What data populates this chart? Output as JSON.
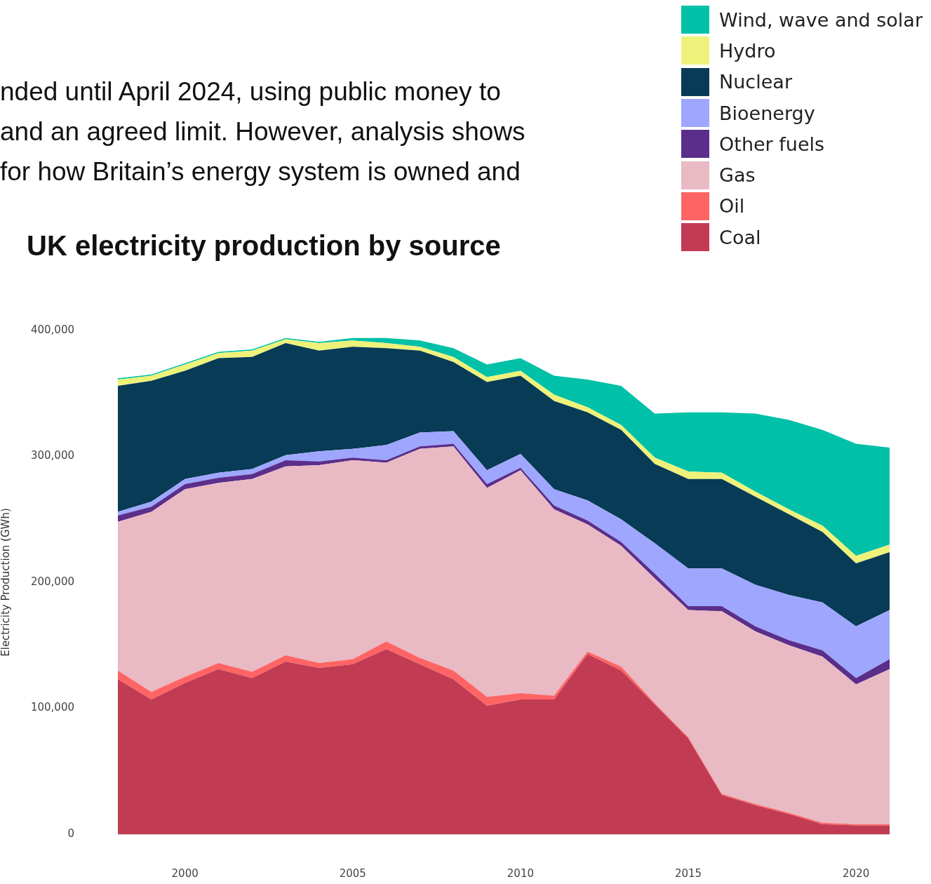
{
  "chart_data": {
    "type": "area",
    "title": "UK electricity production by source",
    "ylabel": "Electricity Production (GWh)",
    "annotations": [
      "nded until April 2024, using public money to",
      "and an agreed limit. However, analysis shows",
      "for how Britain’s energy system is owned and"
    ],
    "x": [
      1998,
      1999,
      2000,
      2001,
      2002,
      2003,
      2004,
      2005,
      2006,
      2007,
      2008,
      2009,
      2010,
      2011,
      2012,
      2013,
      2014,
      2015,
      2016,
      2017,
      2018,
      2019,
      2020,
      2021
    ],
    "stacked": true,
    "series": [
      {
        "name": "Coal",
        "color": "#c13b53",
        "values": [
          123000,
          107000,
          120000,
          131000,
          124000,
          137000,
          132000,
          135000,
          147000,
          135000,
          123000,
          102000,
          107000,
          107000,
          143000,
          130000,
          103000,
          76000,
          31000,
          23000,
          16000,
          8000,
          7000,
          7000
        ]
      },
      {
        "name": "Oil",
        "color": "#fe6464",
        "values": [
          7000,
          6000,
          5000,
          5000,
          5000,
          5000,
          4000,
          4000,
          6000,
          5000,
          7000,
          7000,
          5000,
          3000,
          2000,
          3000,
          1000,
          1000,
          1000,
          1000,
          1000,
          1000,
          1000,
          1000
        ]
      },
      {
        "name": "Gas",
        "color": "#e9b9c4",
        "values": [
          118000,
          143000,
          149000,
          143000,
          153000,
          150000,
          157000,
          158000,
          142000,
          166000,
          178000,
          166000,
          177000,
          148000,
          101000,
          96000,
          99000,
          101000,
          145000,
          137000,
          133000,
          132000,
          111000,
          123000
        ]
      },
      {
        "name": "Other fuels",
        "color": "#5a2e8a",
        "values": [
          5000,
          4000,
          4000,
          4000,
          4000,
          5000,
          3000,
          2000,
          2000,
          2000,
          2000,
          3000,
          2000,
          3000,
          3000,
          3000,
          4000,
          3000,
          4000,
          4000,
          4000,
          5000,
          5000,
          8000
        ]
      },
      {
        "name": "Bioenergy",
        "color": "#9ea6fe",
        "values": [
          3000,
          4000,
          4000,
          4000,
          4000,
          4000,
          8000,
          7000,
          12000,
          11000,
          10000,
          11000,
          11000,
          13000,
          16000,
          18000,
          24000,
          30000,
          30000,
          33000,
          36000,
          38000,
          41000,
          39000
        ]
      },
      {
        "name": "Nuclear",
        "color": "#073b56",
        "values": [
          100000,
          96000,
          86000,
          91000,
          89000,
          89000,
          80000,
          81000,
          77000,
          65000,
          55000,
          70000,
          62000,
          70000,
          70000,
          71000,
          63000,
          71000,
          71000,
          70000,
          64000,
          56000,
          50000,
          46000
        ]
      },
      {
        "name": "Hydro",
        "color": "#eef27a",
        "values": [
          5000,
          4000,
          5000,
          4000,
          5000,
          3000,
          6000,
          5000,
          4000,
          3000,
          4000,
          4000,
          4000,
          5000,
          4000,
          4000,
          5000,
          6000,
          5000,
          4000,
          4000,
          5000,
          6000,
          6000
        ]
      },
      {
        "name": "Wind, wave and solar",
        "color": "#00c0a8",
        "values": [
          1000,
          1000,
          1000,
          1000,
          1000,
          1000,
          1000,
          2000,
          4000,
          5000,
          7000,
          10000,
          10000,
          15000,
          22000,
          31000,
          35000,
          47000,
          48000,
          62000,
          71000,
          76000,
          89000,
          77000
        ]
      }
    ],
    "xlim": [
      1998,
      2021
    ],
    "xticks": [
      2000,
      2005,
      2010,
      2015,
      2020
    ],
    "ylim": [
      0,
      400000
    ],
    "yticks": [
      {
        "value": 0,
        "label": "0"
      },
      {
        "value": 100000,
        "label": "100,000"
      },
      {
        "value": 200000,
        "label": "200,000"
      },
      {
        "value": 300000,
        "label": "300,000"
      },
      {
        "value": 400000,
        "label": "400,000"
      }
    ],
    "legend": "top right"
  }
}
